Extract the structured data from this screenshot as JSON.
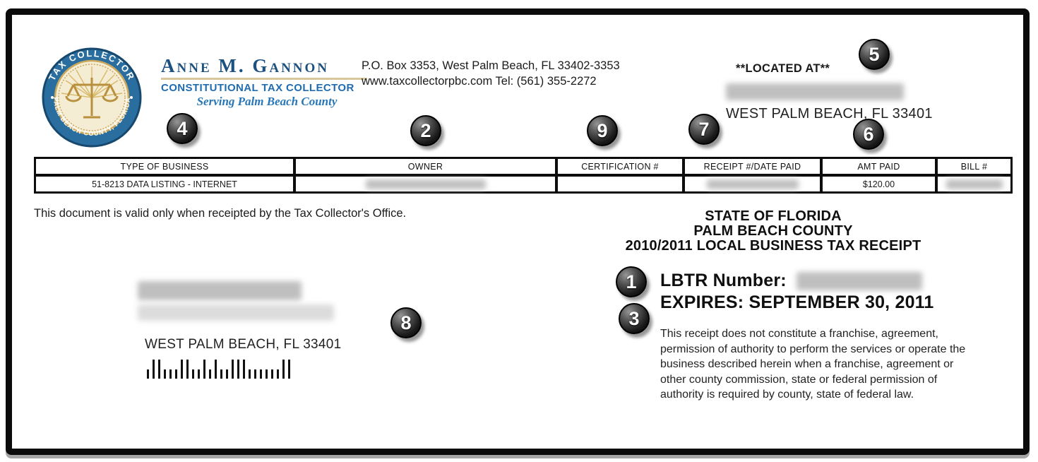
{
  "document": {
    "header": {
      "collector_name": "Anne M. Gannon",
      "collector_title": "CONSTITUTIONAL TAX COLLECTOR",
      "collector_tagline": "Serving Palm Beach County",
      "address_line1": "P.O. Box 3353, West Palm Beach, FL 33402-3353",
      "address_line2": "www.taxcollectorpbc.com Tel: (561) 355-2272",
      "located_at_label": "**LOCATED AT**",
      "located_at_city": "WEST PALM BEACH, FL 33401",
      "seal": {
        "top_text": "TAX COLLECTOR",
        "bottom_text": "PALM BEACH COUNTY, FLORIDA"
      }
    },
    "table": {
      "headers": [
        "TYPE OF BUSINESS",
        "OWNER",
        "CERTIFICATION #",
        "RECEIPT #/DATE PAID",
        "AMT PAID",
        "BILL #"
      ],
      "row": {
        "type_of_business": "51-8213 DATA LISTING - INTERNET",
        "owner": "",
        "certification": "",
        "receipt_date_paid": "",
        "amt_paid": "$120.00",
        "bill": ""
      }
    },
    "valid_note": "This document is valid only when receipted by the Tax Collector's Office.",
    "receipt_block": {
      "state_line": "STATE OF FLORIDA",
      "county_line": "PALM BEACH COUNTY",
      "title_line": "2010/2011 LOCAL BUSINESS TAX RECEIPT",
      "lbtr_label": "LBTR Number:",
      "expires_line": "EXPIRES: SEPTEMBER 30, 2011",
      "disclaimer": "This receipt does not constitute a franchise, agreement, permission of authority to perform the services or operate the business described herein when a franchise, agreement or other county commission, state or federal permission of authority is required by county, state of federal law."
    },
    "mailing_block": {
      "city_line": "WEST PALM BEACH, FL 33401",
      "barcode_pattern": "sttsssttsststsstttsssssstt"
    }
  },
  "badges": [
    "1",
    "2",
    "3",
    "4",
    "5",
    "6",
    "7",
    "8",
    "9"
  ],
  "colors": {
    "brand_dark_blue": "#1d5180",
    "brand_blue": "#1f6cb0",
    "seal_ring_blue": "#2a6ea0",
    "seal_cream": "#f5ecd4",
    "seal_gold": "#c9a85c",
    "underline_tan": "#d8c79a",
    "frame_black": "#0b0b0b"
  }
}
